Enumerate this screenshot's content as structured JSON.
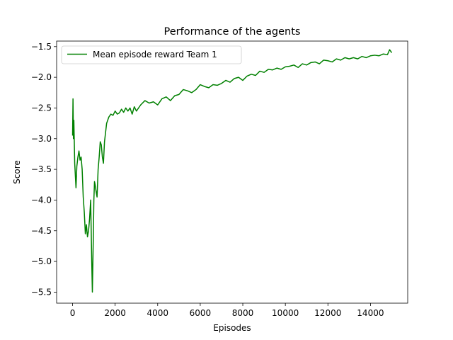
{
  "chart_data": {
    "type": "line",
    "title": "Performance of the agents",
    "xlabel": "Episodes",
    "ylabel": "Score",
    "xlim": [
      -750,
      15750
    ],
    "ylim": [
      -5.68,
      -1.41
    ],
    "xticks": [
      0,
      2000,
      4000,
      6000,
      8000,
      10000,
      12000,
      14000
    ],
    "xtick_labels": [
      "0",
      "2000",
      "4000",
      "6000",
      "8000",
      "10000",
      "12000",
      "14000"
    ],
    "yticks": [
      -5.5,
      -5.0,
      -4.5,
      -4.0,
      -3.5,
      -3.0,
      -2.5,
      -2.0,
      -1.5
    ],
    "ytick_labels": [
      "−5.5",
      "−5.0",
      "−4.5",
      "−4.0",
      "−3.5",
      "−3.0",
      "−2.5",
      "−2.0",
      "−1.5"
    ],
    "grid": false,
    "legend_position": "top-left",
    "series": [
      {
        "name": "Mean episode reward Team 1",
        "color": "#008000",
        "x": [
          0,
          20,
          40,
          60,
          80,
          100,
          130,
          160,
          200,
          250,
          300,
          350,
          400,
          450,
          500,
          550,
          600,
          650,
          700,
          750,
          800,
          850,
          900,
          930,
          950,
          980,
          1000,
          1030,
          1060,
          1100,
          1150,
          1200,
          1250,
          1300,
          1350,
          1400,
          1450,
          1500,
          1550,
          1600,
          1700,
          1800,
          1900,
          2000,
          2100,
          2200,
          2300,
          2400,
          2500,
          2600,
          2700,
          2800,
          2900,
          3000,
          3200,
          3400,
          3600,
          3800,
          4000,
          4200,
          4400,
          4600,
          4800,
          5000,
          5200,
          5400,
          5600,
          5800,
          6000,
          6200,
          6400,
          6600,
          6800,
          7000,
          7200,
          7400,
          7600,
          7800,
          8000,
          8200,
          8400,
          8600,
          8800,
          9000,
          9200,
          9400,
          9600,
          9800,
          10000,
          10200,
          10400,
          10600,
          10800,
          11000,
          11200,
          11400,
          11600,
          11800,
          12000,
          12200,
          12400,
          12600,
          12800,
          13000,
          13200,
          13400,
          13600,
          13800,
          14000,
          14200,
          14400,
          14600,
          14800,
          14900,
          15000
        ],
        "y": [
          -2.95,
          -2.35,
          -3.0,
          -2.7,
          -3.05,
          -3.4,
          -3.6,
          -3.8,
          -3.45,
          -3.3,
          -3.2,
          -3.35,
          -3.3,
          -3.5,
          -3.95,
          -4.2,
          -4.55,
          -4.4,
          -4.6,
          -4.5,
          -4.3,
          -4.0,
          -5.0,
          -5.5,
          -5.1,
          -4.5,
          -4.0,
          -3.7,
          -3.75,
          -3.85,
          -3.95,
          -3.5,
          -3.3,
          -3.05,
          -3.1,
          -3.3,
          -3.4,
          -3.05,
          -2.9,
          -2.75,
          -2.65,
          -2.6,
          -2.62,
          -2.55,
          -2.6,
          -2.58,
          -2.52,
          -2.57,
          -2.5,
          -2.55,
          -2.5,
          -2.6,
          -2.48,
          -2.55,
          -2.45,
          -2.38,
          -2.42,
          -2.4,
          -2.45,
          -2.35,
          -2.32,
          -2.38,
          -2.3,
          -2.28,
          -2.2,
          -2.22,
          -2.25,
          -2.2,
          -2.12,
          -2.15,
          -2.17,
          -2.12,
          -2.13,
          -2.1,
          -2.05,
          -2.08,
          -2.02,
          -2.0,
          -2.05,
          -1.98,
          -1.95,
          -1.97,
          -1.9,
          -1.92,
          -1.87,
          -1.88,
          -1.85,
          -1.87,
          -1.83,
          -1.82,
          -1.8,
          -1.84,
          -1.78,
          -1.8,
          -1.76,
          -1.75,
          -1.78,
          -1.72,
          -1.73,
          -1.75,
          -1.7,
          -1.72,
          -1.68,
          -1.7,
          -1.68,
          -1.7,
          -1.66,
          -1.68,
          -1.65,
          -1.64,
          -1.65,
          -1.62,
          -1.63,
          -1.55,
          -1.6
        ]
      }
    ]
  }
}
